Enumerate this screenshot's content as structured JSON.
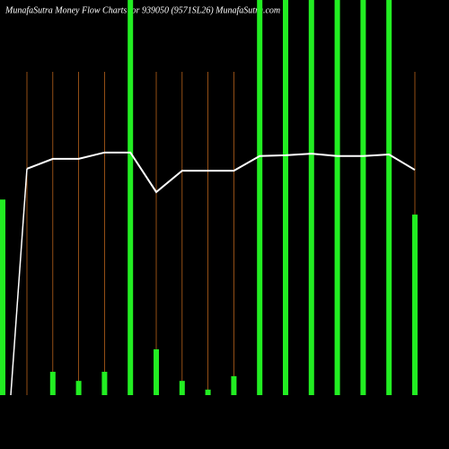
{
  "chart_data": {
    "type": "bar-line",
    "title": "MunafaSutra  Money Flow  Charts for 939050  (9571SL26) MunafaSutra.com",
    "categories": [
      null,
      null,
      null,
      null,
      null,
      null,
      null,
      null,
      null,
      null,
      null,
      null,
      null,
      null,
      null,
      null
    ],
    "ylim": [
      0,
      100
    ],
    "series": [
      {
        "color": "#22ee22",
        "values": [
          49.5,
          5.9,
          3.6,
          5.9,
          100,
          11.6,
          3.6,
          1.4,
          4.8,
          100,
          100,
          100,
          100,
          100,
          100,
          45.7
        ]
      },
      {
        "color": "#ffffff",
        "values": [
          57.3,
          59.8,
          59.8,
          61.4,
          61.4,
          51.4,
          56.8,
          56.8,
          56.8,
          60.5,
          60.7,
          61.1,
          60.5,
          60.5,
          60.9,
          57.0
        ]
      }
    ],
    "guide_color": "#b8621b"
  }
}
